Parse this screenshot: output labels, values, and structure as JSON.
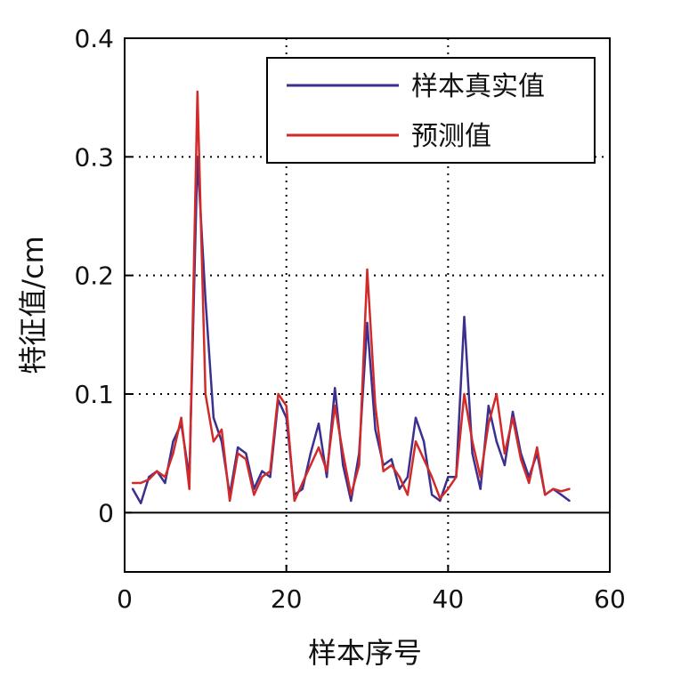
{
  "chart_data": {
    "type": "line",
    "xlabel": "样本序号",
    "ylabel": "特征值/cm",
    "xlim": [
      0,
      60
    ],
    "ylim": [
      -0.05,
      0.4
    ],
    "xticks": [
      "0",
      "20",
      "40",
      "60"
    ],
    "yticks": [
      "0",
      "0.1",
      "0.2",
      "0.3",
      "0.4"
    ],
    "xtick_values": [
      0,
      20,
      40,
      60
    ],
    "ytick_values": [
      0,
      0.1,
      0.2,
      0.3,
      0.4
    ],
    "grid": true,
    "zero_line": true,
    "legend_position": "top-right",
    "x": [
      1,
      2,
      3,
      4,
      5,
      6,
      7,
      8,
      9,
      10,
      11,
      12,
      13,
      14,
      15,
      16,
      17,
      18,
      19,
      20,
      21,
      22,
      23,
      24,
      25,
      26,
      27,
      28,
      29,
      30,
      31,
      32,
      33,
      34,
      35,
      36,
      37,
      38,
      39,
      40,
      41,
      42,
      43,
      44,
      45,
      46,
      47,
      48,
      49,
      50,
      51,
      52,
      53,
      54,
      55
    ],
    "series": [
      {
        "name": "样本真实值",
        "color": "#3b2f8f",
        "values": [
          0.02,
          0.008,
          0.03,
          0.035,
          0.025,
          0.06,
          0.075,
          0.03,
          0.3,
          0.18,
          0.08,
          0.06,
          0.015,
          0.055,
          0.05,
          0.02,
          0.035,
          0.03,
          0.095,
          0.08,
          0.015,
          0.02,
          0.05,
          0.075,
          0.03,
          0.105,
          0.04,
          0.01,
          0.05,
          0.16,
          0.07,
          0.04,
          0.045,
          0.02,
          0.03,
          0.08,
          0.06,
          0.015,
          0.01,
          0.03,
          0.03,
          0.165,
          0.05,
          0.02,
          0.09,
          0.06,
          0.04,
          0.085,
          0.05,
          0.03,
          0.05,
          0.015,
          0.02,
          0.015,
          0.01
        ]
      },
      {
        "name": "预测值",
        "color": "#d12a2a",
        "values": [
          0.025,
          0.025,
          0.028,
          0.035,
          0.03,
          0.05,
          0.08,
          0.02,
          0.355,
          0.1,
          0.06,
          0.07,
          0.01,
          0.05,
          0.045,
          0.015,
          0.03,
          0.035,
          0.1,
          0.09,
          0.01,
          0.025,
          0.04,
          0.055,
          0.035,
          0.09,
          0.05,
          0.015,
          0.04,
          0.205,
          0.09,
          0.035,
          0.04,
          0.03,
          0.015,
          0.06,
          0.045,
          0.03,
          0.012,
          0.02,
          0.03,
          0.1,
          0.06,
          0.03,
          0.075,
          0.1,
          0.05,
          0.08,
          0.045,
          0.025,
          0.055,
          0.015,
          0.02,
          0.018,
          0.02
        ]
      }
    ]
  }
}
